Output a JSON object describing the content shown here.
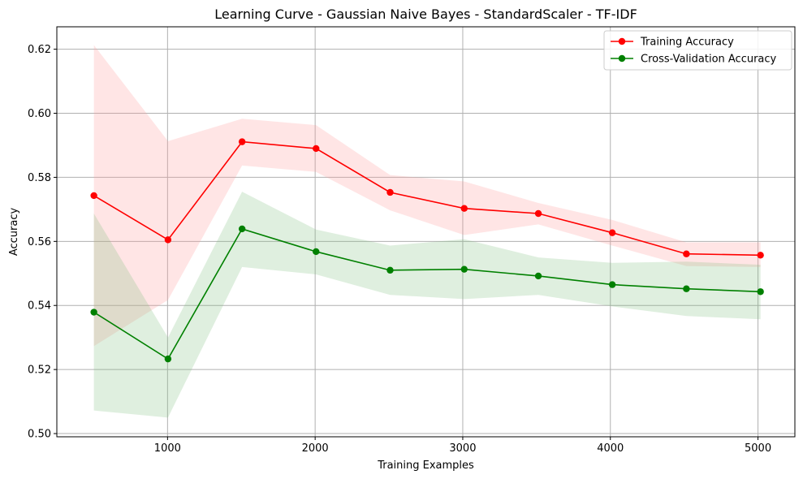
{
  "chart_data": {
    "type": "line",
    "title": "Learning Curve - Gaussian Naive Bayes - StandardScaler - TF-IDF",
    "xlabel": "Training Examples",
    "ylabel": "Accuracy",
    "xlim": [
      250,
      5250
    ],
    "ylim": [
      0.499,
      0.627
    ],
    "xticks": [
      1000,
      2000,
      3000,
      4000,
      5000
    ],
    "yticks": [
      0.5,
      0.52,
      0.54,
      0.56,
      0.58,
      0.6,
      0.62
    ],
    "xtick_labels": [
      "1000",
      "2000",
      "3000",
      "4000",
      "5000"
    ],
    "ytick_labels": [
      "0.50",
      "0.52",
      "0.54",
      "0.56",
      "0.58",
      "0.60",
      "0.62"
    ],
    "grid": true,
    "legend_position": "top-right",
    "x": [
      501,
      1003,
      1505,
      2006,
      2508,
      3010,
      3512,
      4013,
      4515,
      5017
    ],
    "series": [
      {
        "name": "Training Accuracy",
        "color": "#ff0000",
        "band_color": "#ff9999",
        "values": [
          0.5743,
          0.5605,
          0.5911,
          0.589,
          0.5753,
          0.5703,
          0.5687,
          0.5627,
          0.5561,
          0.5557
        ],
        "upper": [
          0.6213,
          0.5913,
          0.5983,
          0.5963,
          0.5807,
          0.5787,
          0.572,
          0.5667,
          0.5597,
          0.5597
        ],
        "lower": [
          0.5273,
          0.5417,
          0.5837,
          0.5817,
          0.5697,
          0.562,
          0.5653,
          0.5587,
          0.5523,
          0.552
        ]
      },
      {
        "name": "Cross-Validation Accuracy",
        "color": "#008000",
        "band_color": "#80c080",
        "values": [
          0.5379,
          0.5233,
          0.5639,
          0.5568,
          0.551,
          0.5513,
          0.5492,
          0.5465,
          0.5452,
          0.5443
        ],
        "upper": [
          0.5687,
          0.53,
          0.5755,
          0.5637,
          0.5587,
          0.5607,
          0.555,
          0.5533,
          0.5537,
          0.5527
        ],
        "lower": [
          0.5072,
          0.505,
          0.552,
          0.5497,
          0.5433,
          0.542,
          0.5433,
          0.5397,
          0.5367,
          0.5357
        ]
      }
    ]
  }
}
